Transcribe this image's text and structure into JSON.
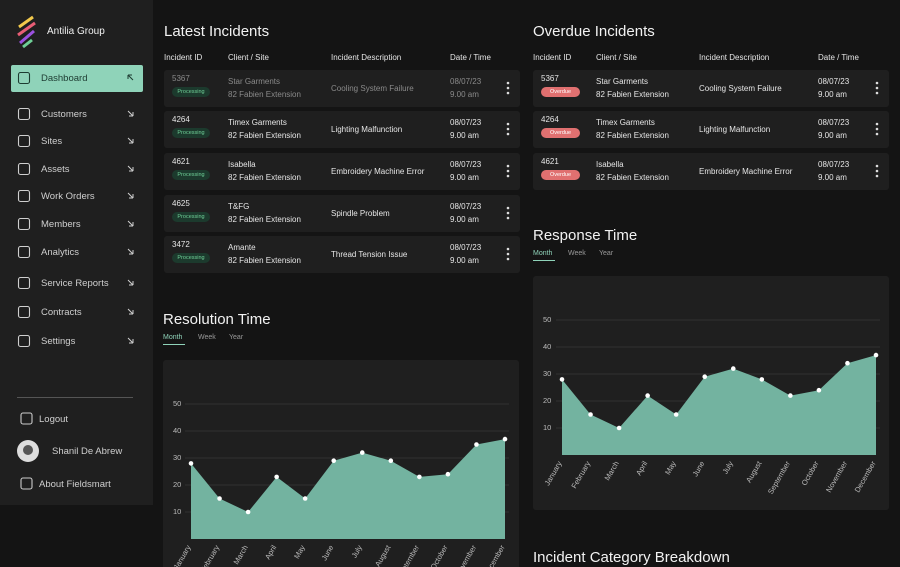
{
  "sidebar": {
    "brand": "Antilia Group",
    "nav": [
      "Dashboard",
      "Customers",
      "Sites",
      "Assets",
      "Work Orders",
      "Members",
      "Analytics",
      "Service Reports",
      "Contracts",
      "Settings"
    ],
    "footer": [
      "Logout",
      "Shanil De Abrew",
      "About Fieldsmart"
    ]
  },
  "latest_incidents": {
    "title": "Latest Incidents",
    "columns": [
      "Incident ID",
      "Client / Site",
      "Incident Description",
      "Date / Time"
    ],
    "rows": [
      {
        "id": "5367",
        "status": "Processing",
        "client": "Star Garments",
        "site": "82 Fabien Extension",
        "description": "Cooling System Failure",
        "date": "08/07/23",
        "time": "9.00 am"
      },
      {
        "id": "4264",
        "status": "Processing",
        "client": "Timex Garments",
        "site": "82 Fabien Extension",
        "description": "Lighting Malfunction",
        "date": "08/07/23",
        "time": "9.00 am"
      },
      {
        "id": "4621",
        "status": "Processing",
        "client": "Isabella",
        "site": "82 Fabien Extension",
        "description": "Embroidery Machine Error",
        "date": "08/07/23",
        "time": "9.00 am"
      },
      {
        "id": "4625",
        "status": "Processing",
        "client": "T&FG",
        "site": "82 Fabien Extension",
        "description": "Spindle Problem",
        "date": "08/07/23",
        "time": "9.00 am"
      },
      {
        "id": "3472",
        "status": "Processing",
        "client": "Amante",
        "site": "82 Fabien Extension",
        "description": "Thread Tension Issue",
        "date": "08/07/23",
        "time": "9.00 am"
      }
    ]
  },
  "overdue_incidents": {
    "title": "Overdue Incidents",
    "columns": [
      "Incident ID",
      "Client / Site",
      "Incident Description",
      "Date / Time"
    ],
    "rows": [
      {
        "id": "5367",
        "status": "Overdue",
        "client": "Star Garments",
        "site": "82 Fabien Extension",
        "description": "Cooling System Failure",
        "date": "08/07/23",
        "time": "9.00 am"
      },
      {
        "id": "4264",
        "status": "Overdue",
        "client": "Timex Garments",
        "site": "82 Fabien Extension",
        "description": "Lighting Malfunction",
        "date": "08/07/23",
        "time": "9.00 am"
      },
      {
        "id": "4621",
        "status": "Overdue",
        "client": "Isabella",
        "site": "82 Fabien Extension",
        "description": "Embroidery Machine Error",
        "date": "08/07/23",
        "time": "9.00 am"
      }
    ]
  },
  "resolution_time": {
    "title": "Resolution Time",
    "tabs": [
      "Month",
      "Week",
      "Year"
    ],
    "chart": {
      "type": "area",
      "categories": [
        "January",
        "February",
        "March",
        "April",
        "May",
        "June",
        "July",
        "August",
        "September",
        "October",
        "November",
        "December"
      ],
      "values": [
        28,
        15,
        10,
        23,
        15,
        29,
        32,
        29,
        23,
        24,
        35,
        37
      ],
      "color": "#73b3a0",
      "ylim": [
        0,
        55
      ],
      "yticks": [
        10,
        20,
        30,
        40,
        50
      ],
      "grid": true
    }
  },
  "response_time": {
    "title": "Response Time",
    "tabs": [
      "Month",
      "Week",
      "Year"
    ],
    "chart": {
      "type": "area",
      "categories": [
        "January",
        "February",
        "March",
        "April",
        "May",
        "June",
        "July",
        "August",
        "September",
        "October",
        "November",
        "December"
      ],
      "values": [
        28,
        15,
        10,
        22,
        15,
        29,
        32,
        28,
        22,
        24,
        34,
        37
      ],
      "color": "#73b3a0",
      "ylim": [
        0,
        55
      ],
      "yticks": [
        10,
        20,
        30,
        40,
        50
      ],
      "grid": true
    }
  },
  "incident_category": {
    "title": "Incident Category Breakdown"
  }
}
